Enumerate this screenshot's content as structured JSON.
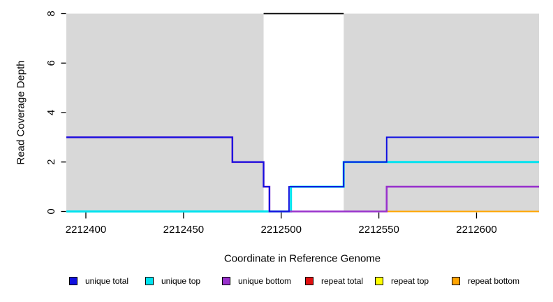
{
  "chart_data": {
    "type": "line",
    "step": true,
    "title": "",
    "xlabel": "Coordinate in Reference Genome",
    "ylabel": "Read Coverage Depth",
    "xlim": [
      2212390,
      2212632
    ],
    "ylim": [
      0,
      8
    ],
    "x_ticks": [
      "2212400",
      "2212450",
      "2212500",
      "2212550",
      "2212600"
    ],
    "x_tick_values": [
      2212400,
      2212450,
      2212500,
      2212550,
      2212600
    ],
    "y_ticks": [
      "0",
      "2",
      "4",
      "6",
      "8"
    ],
    "y_tick_values": [
      0,
      2,
      4,
      6,
      8
    ],
    "grid": false,
    "plot_background": "#d8d8d8",
    "page_background": "#ffffff",
    "highlight_region": {
      "start": 2212491,
      "end": 2212532,
      "fill": "#ffffff",
      "top_marker_color": "#000000",
      "top_marker_value": 8
    },
    "series": [
      {
        "name": "repeat total",
        "color": "#e01010",
        "points": []
      },
      {
        "name": "repeat top",
        "color": "#ffff00",
        "points": []
      },
      {
        "name": "repeat bottom",
        "color": "#ffa500",
        "points": [
          [
            2212554,
            0
          ],
          [
            2212632,
            0
          ]
        ]
      },
      {
        "name": "unique top",
        "color": "#00e3ef",
        "points": [
          [
            2212390,
            0
          ],
          [
            2212505,
            0
          ],
          [
            2212505,
            1
          ],
          [
            2212532,
            1
          ],
          [
            2212532,
            2
          ],
          [
            2212632,
            2
          ]
        ]
      },
      {
        "name": "unique bottom",
        "color": "#9932cc",
        "points": [
          [
            2212390,
            3
          ],
          [
            2212475,
            3
          ],
          [
            2212475,
            2
          ],
          [
            2212491,
            2
          ],
          [
            2212491,
            1
          ],
          [
            2212494,
            1
          ],
          [
            2212494,
            0
          ],
          [
            2212554,
            0
          ],
          [
            2212554,
            1
          ],
          [
            2212632,
            1
          ]
        ]
      },
      {
        "name": "unique total",
        "color": "#1111e0",
        "points": [
          [
            2212390,
            3
          ],
          [
            2212475,
            3
          ],
          [
            2212475,
            2
          ],
          [
            2212491,
            2
          ],
          [
            2212491,
            1
          ],
          [
            2212494,
            1
          ],
          [
            2212494,
            0
          ],
          [
            2212504,
            0
          ],
          [
            2212504,
            1
          ],
          [
            2212532,
            1
          ],
          [
            2212532,
            2
          ],
          [
            2212554,
            2
          ],
          [
            2212554,
            3
          ],
          [
            2212632,
            3
          ]
        ]
      }
    ],
    "legend": [
      {
        "label": "unique total",
        "color": "#1111e0"
      },
      {
        "label": "unique top",
        "color": "#00e3ef"
      },
      {
        "label": "unique bottom",
        "color": "#9932cc"
      },
      {
        "label": "repeat total",
        "color": "#e01010"
      },
      {
        "label": "repeat top",
        "color": "#ffff00"
      },
      {
        "label": "repeat bottom",
        "color": "#ffa500"
      }
    ],
    "legend_position": "bottom"
  },
  "labels": {
    "xlabel": "Coordinate in Reference Genome",
    "ylabel": "Read Coverage Depth"
  }
}
